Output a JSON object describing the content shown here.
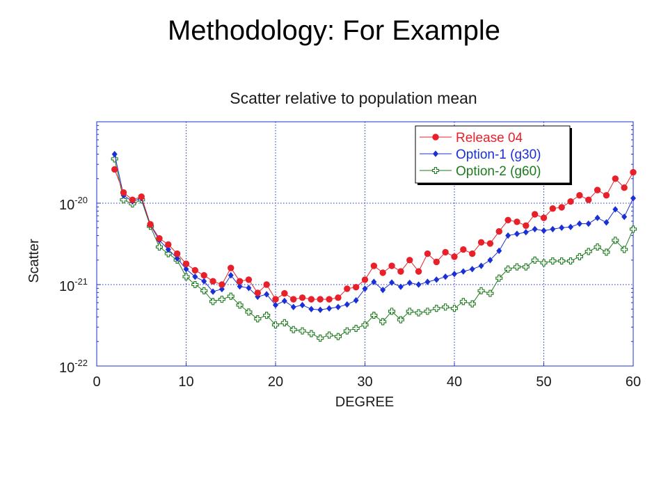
{
  "slide": {
    "title": "Methodology: For Example"
  },
  "chart_data": {
    "type": "line",
    "title": "Scatter relative to population mean",
    "xlabel": "DEGREE",
    "ylabel": "Scatter",
    "xlim": [
      0,
      60
    ],
    "ylim": [
      1e-22,
      1e-19
    ],
    "yscale": "log",
    "x_ticks": [
      "0",
      "10",
      "20",
      "30",
      "40",
      "50",
      "60"
    ],
    "y_ticks": [
      {
        "base": "10",
        "exp": "-22",
        "value": 1e-22
      },
      {
        "base": "10",
        "exp": "-21",
        "value": 1e-21
      },
      {
        "base": "10",
        "exp": "-20",
        "value": 1e-20
      }
    ],
    "grid": true,
    "legend_position": "top-right",
    "x": [
      2,
      3,
      4,
      5,
      6,
      7,
      8,
      9,
      10,
      11,
      12,
      13,
      14,
      15,
      16,
      17,
      18,
      19,
      20,
      21,
      22,
      23,
      24,
      25,
      26,
      27,
      28,
      29,
      30,
      31,
      32,
      33,
      34,
      35,
      36,
      37,
      38,
      39,
      40,
      41,
      42,
      43,
      44,
      45,
      46,
      47,
      48,
      49,
      50,
      51,
      52,
      53,
      54,
      55,
      56,
      57,
      58,
      59,
      60
    ],
    "series": [
      {
        "name": "Release 04",
        "color": "#e8202a",
        "marker": "circle",
        "values": [
          2.6e-20,
          1.35e-20,
          1.1e-20,
          1.2e-20,
          5.5e-21,
          3.7e-21,
          3.1e-21,
          2.4e-21,
          1.8e-21,
          1.5e-21,
          1.3e-21,
          1.1e-21,
          1e-21,
          1.6e-21,
          1.1e-21,
          1.15e-21,
          7.9e-22,
          1e-21,
          6.6e-22,
          7.8e-22,
          6.6e-22,
          6.9e-22,
          6.6e-22,
          6.6e-22,
          6.6e-22,
          6.9e-22,
          8.9e-22,
          9.3e-22,
          1.15e-21,
          1.7e-21,
          1.4e-21,
          1.7e-21,
          1.45e-21,
          2e-21,
          1.45e-21,
          2.4e-21,
          1.9e-21,
          2.5e-21,
          2.2e-21,
          2.7e-21,
          2.4e-21,
          3.3e-21,
          3.2e-21,
          4.5e-21,
          6.2e-21,
          5.9e-21,
          5.3e-21,
          7.3e-21,
          6.6e-21,
          8.6e-21,
          8.9e-21,
          1.05e-20,
          1.25e-20,
          1.1e-20,
          1.45e-20,
          1.25e-20,
          2e-20,
          1.55e-20,
          2.4e-20
        ]
      },
      {
        "name": "Option-1 (g30)",
        "color": "#1a2fd6",
        "marker": "diamond",
        "values": [
          4e-20,
          1.25e-20,
          1.05e-20,
          1.15e-20,
          5.4e-21,
          3.5e-21,
          2.7e-21,
          2.1e-21,
          1.55e-21,
          1.25e-21,
          1.1e-21,
          8.2e-22,
          8.8e-22,
          1.3e-21,
          9.5e-22,
          9.1e-22,
          7.1e-22,
          7.6e-22,
          5.6e-22,
          6.3e-22,
          5.3e-22,
          5.6e-22,
          5e-22,
          4.9e-22,
          5.1e-22,
          5.3e-22,
          5.7e-22,
          6.4e-22,
          8.9e-22,
          1.08e-21,
          8.6e-22,
          1.06e-21,
          9.4e-22,
          1.05e-21,
          1e-21,
          1.08e-21,
          1.15e-21,
          1.25e-21,
          1.35e-21,
          1.45e-21,
          1.55e-21,
          1.7e-21,
          2e-21,
          2.6e-21,
          4e-21,
          4.2e-21,
          4.4e-21,
          4.8e-21,
          4.6e-21,
          4.8e-21,
          5e-21,
          5.1e-21,
          5.6e-21,
          5.6e-21,
          6.6e-21,
          5.8e-21,
          8.4e-21,
          6.8e-21,
          1.15e-20
        ]
      },
      {
        "name": "Option-2 (g60)",
        "color": "#1f7a1f",
        "marker": "open-plus",
        "values": [
          3.5e-20,
          1.1e-20,
          9.8e-21,
          1.1e-20,
          5.2e-21,
          2.9e-21,
          2.4e-21,
          2e-21,
          1.25e-21,
          1e-21,
          8.4e-22,
          6.2e-22,
          6.6e-22,
          7.2e-22,
          5.6e-22,
          4.6e-22,
          3.8e-22,
          4.2e-22,
          3.2e-22,
          3.4e-22,
          2.8e-22,
          2.7e-22,
          2.5e-22,
          2.2e-22,
          2.4e-22,
          2.3e-22,
          2.7e-22,
          2.9e-22,
          3.2e-22,
          4.2e-22,
          3.5e-22,
          4.7e-22,
          3.7e-22,
          4.7e-22,
          4.5e-22,
          4.7e-22,
          5.1e-22,
          5.3e-22,
          5.1e-22,
          6.2e-22,
          5.8e-22,
          8.4e-22,
          7.8e-22,
          1.2e-21,
          1.55e-21,
          1.65e-21,
          1.65e-21,
          2e-21,
          1.85e-21,
          1.95e-21,
          1.95e-21,
          1.95e-21,
          2.2e-21,
          2.55e-21,
          2.9e-21,
          2.5e-21,
          3.5e-21,
          2.7e-21,
          4.8e-21
        ]
      }
    ]
  }
}
